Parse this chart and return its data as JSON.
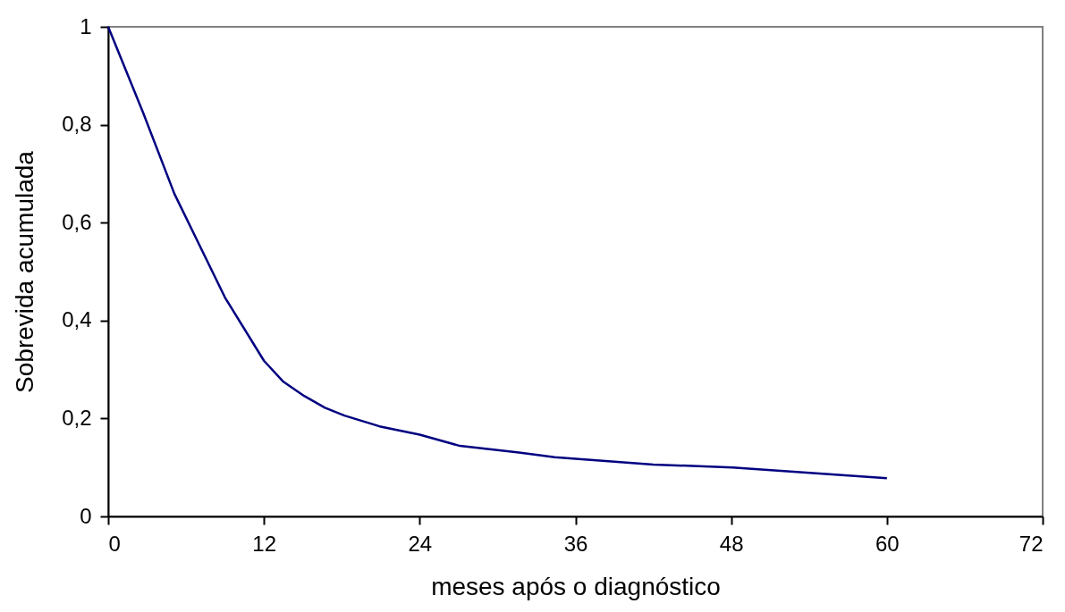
{
  "chart_data": {
    "type": "line",
    "xlabel": "meses após o diagnóstico",
    "ylabel": "Sobrevida acumulada",
    "x": [
      0,
      2.7,
      5.1,
      9,
      12,
      13.5,
      15.1,
      16.7,
      18.2,
      20.9,
      24,
      27.1,
      31.5,
      34.4,
      42,
      48.1,
      60
    ],
    "series": [
      {
        "color": "#000080",
        "values": [
          1,
          0.824,
          0.659,
          0.447,
          0.318,
          0.275,
          0.246,
          0.222,
          0.206,
          0.184,
          0.167,
          0.144,
          0.131,
          0.121,
          0.106,
          0.1,
          0.078
        ]
      }
    ],
    "xlim": [
      0,
      72
    ],
    "xticks": [
      0,
      12,
      24,
      36,
      48,
      60,
      72
    ],
    "ylim": [
      0,
      1
    ],
    "yticks": [
      0,
      {
        "value": 0.2,
        "label": "0,2"
      },
      {
        "value": 0.4,
        "label": "0,4"
      },
      {
        "value": 0.6,
        "label": "0,6"
      },
      {
        "value": 0.8,
        "label": "0,8"
      },
      1
    ],
    "grid": false,
    "marker": "none",
    "line_style": "solid"
  }
}
